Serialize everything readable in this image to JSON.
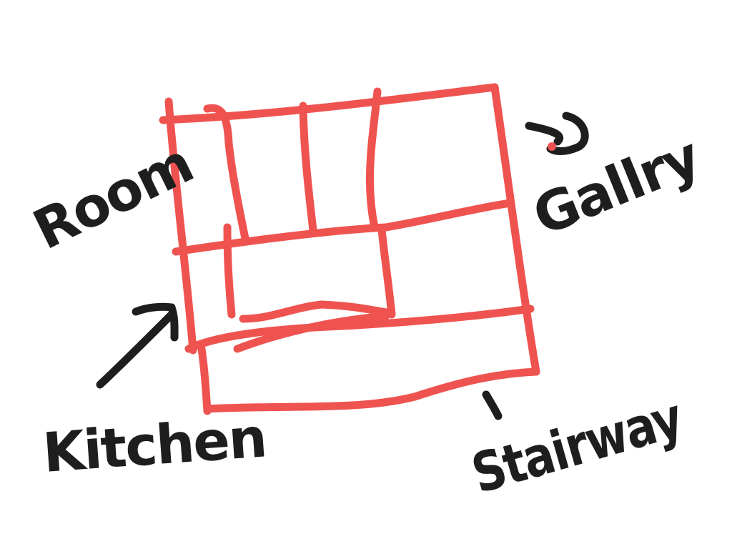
{
  "colors": {
    "plan": "#ef5350",
    "ink": "#1e1e1e",
    "background": "#ffffff"
  },
  "labels": {
    "room": "Room",
    "kitchen": "Kitchen",
    "gallery": "Gallry",
    "stairway": "Stairway"
  }
}
